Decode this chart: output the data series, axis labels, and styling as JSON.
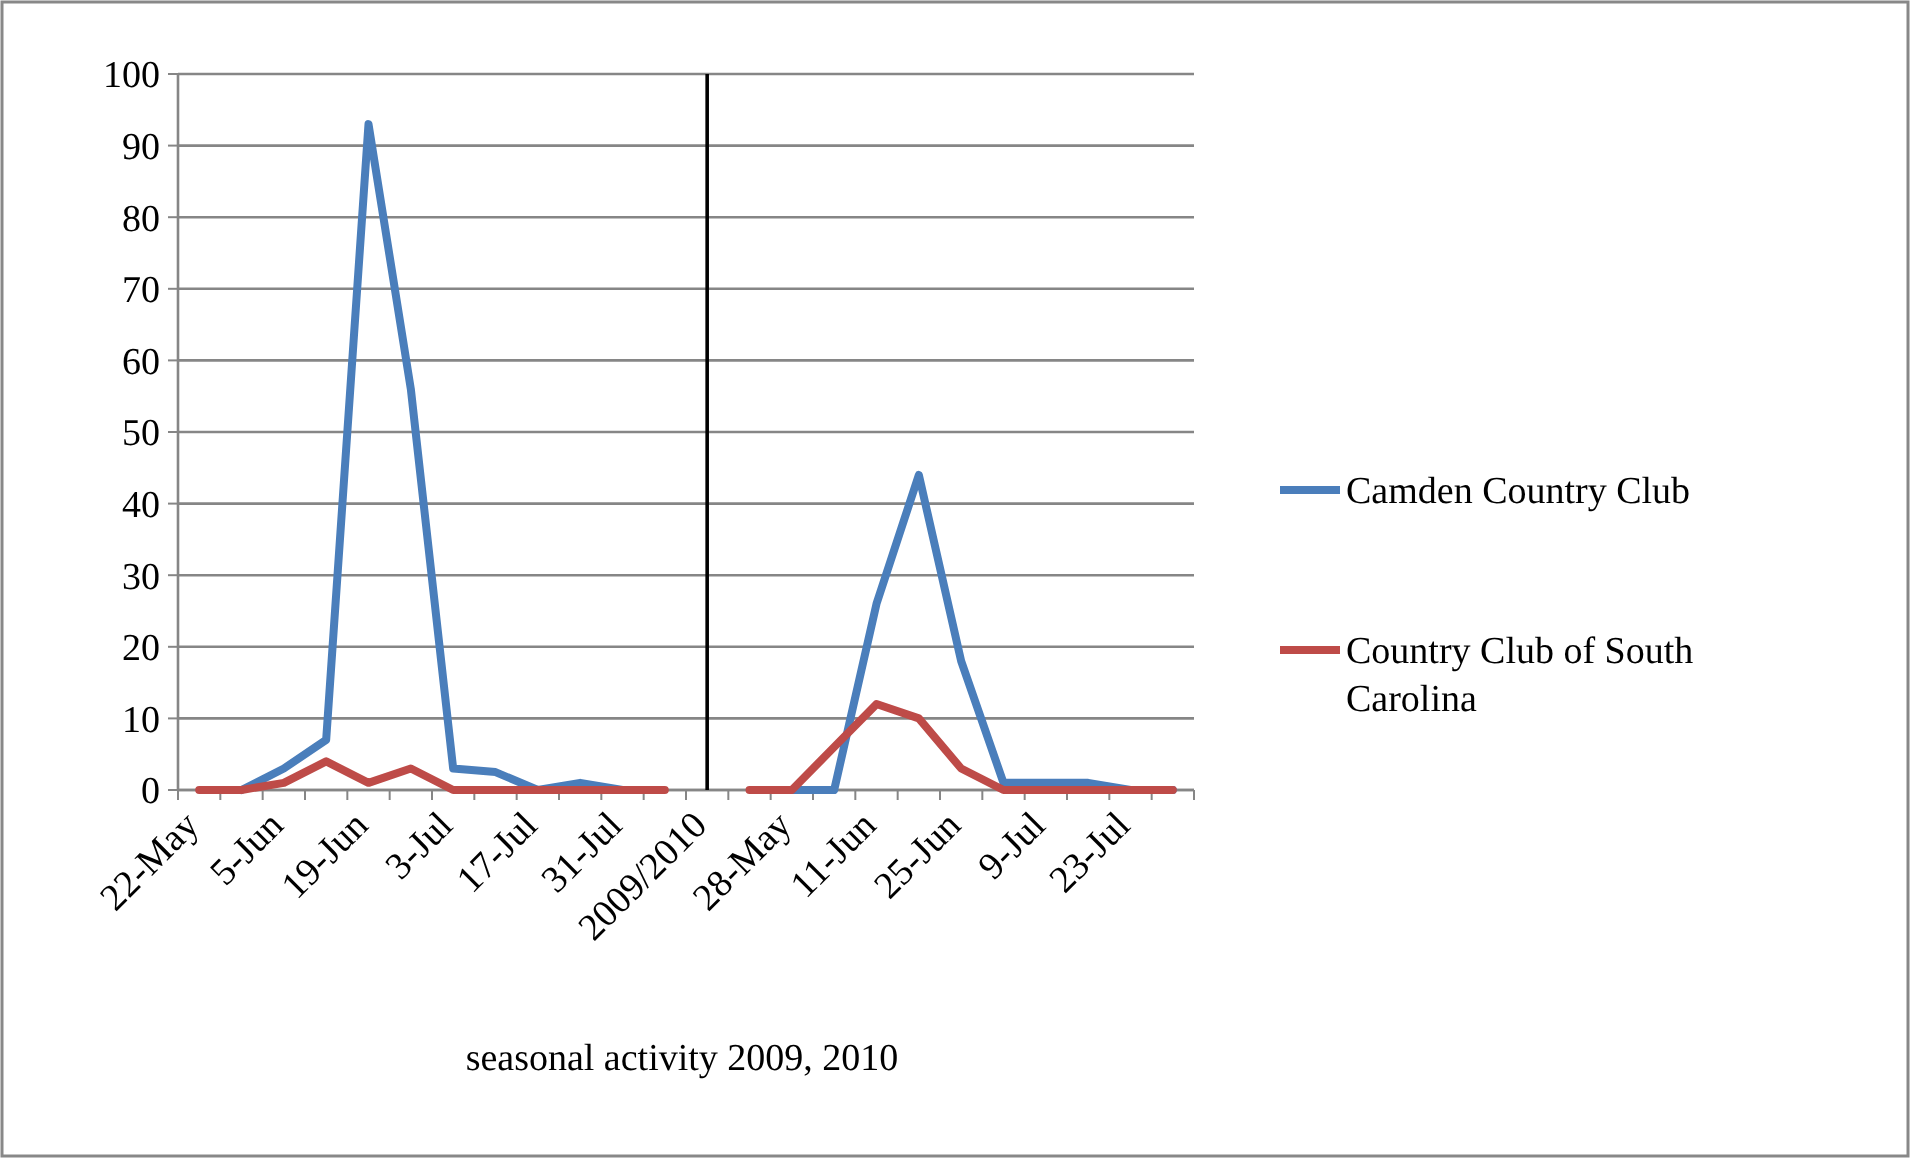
{
  "chart_data": {
    "type": "line",
    "xlabel": "seasonal activity 2009, 2010",
    "categories": [
      "22-May",
      null,
      "5-Jun",
      null,
      "19-Jun",
      null,
      "3-Jul",
      null,
      "17-Jul",
      null,
      "31-Jul",
      null,
      "2009/2010",
      null,
      "28-May",
      null,
      "11-Jun",
      null,
      "25-Jun",
      null,
      "9-Jul",
      null,
      "23-Jul",
      null
    ],
    "series": [
      {
        "name": "Camden Country Club",
        "color": "#4a7ebb",
        "values": [
          null,
          0,
          3,
          7,
          93,
          56,
          3,
          2.5,
          0,
          1,
          0,
          null,
          null,
          null,
          0,
          0,
          26,
          44,
          18,
          1,
          1,
          1,
          0,
          0
        ]
      },
      {
        "name": "Country Club of South Carolina",
        "color": "#be4b48",
        "values": [
          0,
          0,
          1,
          4,
          1,
          3,
          0,
          0,
          0,
          0,
          0,
          0,
          null,
          0,
          0,
          6,
          12,
          10,
          3,
          0,
          0,
          0,
          0,
          0
        ]
      }
    ],
    "ylim": [
      0,
      100
    ],
    "yticks": [
      0,
      10,
      20,
      30,
      40,
      50,
      60,
      70,
      80,
      90,
      100
    ],
    "grid": "y",
    "legend": "right",
    "marker": "none",
    "line_style": "solid",
    "ref_lines": [
      {
        "axis": "x",
        "value": "2009/2010",
        "color": "#000000"
      }
    ]
  }
}
